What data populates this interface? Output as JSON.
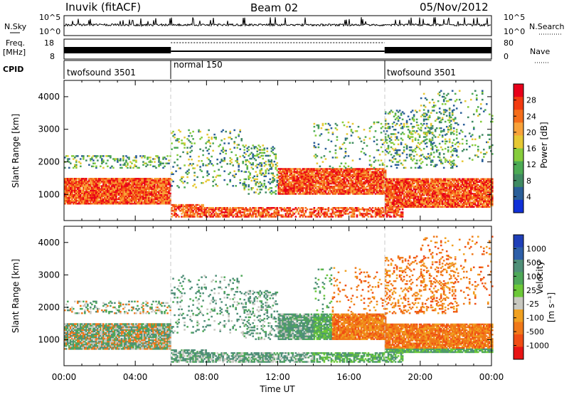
{
  "header": {
    "station": "Inuvik (fitACF)",
    "beam": "Beam 02",
    "date": "05/Nov/2012"
  },
  "strip": {
    "nsky_label": "N.Sky",
    "nsky_ticks": [
      "10^5",
      "10^0"
    ],
    "nsearch_label": "N.Search",
    "nsearch_ticks": [
      "10^5",
      "10^0"
    ],
    "freq_label": "Freq.",
    "freq_unit": "[MHz]",
    "freq_ticks": [
      "18",
      "8"
    ],
    "nave_label": "Nave",
    "nave_ticks": [
      "80",
      "0"
    ],
    "cpid_label": "CPID",
    "cpid_segments": [
      {
        "name": "twofsound 3501",
        "start_hr": 0,
        "end_hr": 6
      },
      {
        "name": "normal 150",
        "start_hr": 6,
        "end_hr": 18
      },
      {
        "name": "twofsound 3501",
        "start_hr": 18,
        "end_hr": 24
      }
    ]
  },
  "chart_data": [
    {
      "type": "heatmap",
      "ylabel": "Slant Range [km]",
      "ylim": [
        200,
        4500
      ],
      "yticks": [
        1000,
        2000,
        3000,
        4000
      ],
      "xlim": [
        0,
        24
      ],
      "colorbar": {
        "label": "Power [dB]",
        "ticks": [
          "28",
          "24",
          "20",
          "16",
          "12",
          "8",
          "4"
        ],
        "colors": [
          "#e8001a",
          "#f23a10",
          "#f56d1a",
          "#f8a23a",
          "#e6c833",
          "#86cc3c",
          "#4caa54",
          "#3f8a62",
          "#2a5e98",
          "#1030d8"
        ]
      }
    },
    {
      "type": "heatmap",
      "ylabel": "Slant Range [km]",
      "ylim": [
        200,
        4500
      ],
      "yticks": [
        1000,
        2000,
        3000,
        4000
      ],
      "xlim": [
        0,
        24
      ],
      "xticks": [
        "00:00",
        "04:00",
        "08:00",
        "12:00",
        "16:00",
        "20:00",
        "00:00"
      ],
      "xlabel": "Time UT",
      "colorbar": {
        "label": "Velocity",
        "unit": "[m s⁻¹]",
        "ticks": [
          "1000",
          "500",
          "100",
          "25",
          "-25",
          "-100",
          "-500",
          "-1000"
        ],
        "colors": [
          "#1f3fb8",
          "#2d5fa8",
          "#4f8f78",
          "#4ea858",
          "#6cc838",
          "#c8c8c0",
          "#f0a020",
          "#f07818",
          "#f04d14",
          "#e81414"
        ]
      }
    }
  ]
}
